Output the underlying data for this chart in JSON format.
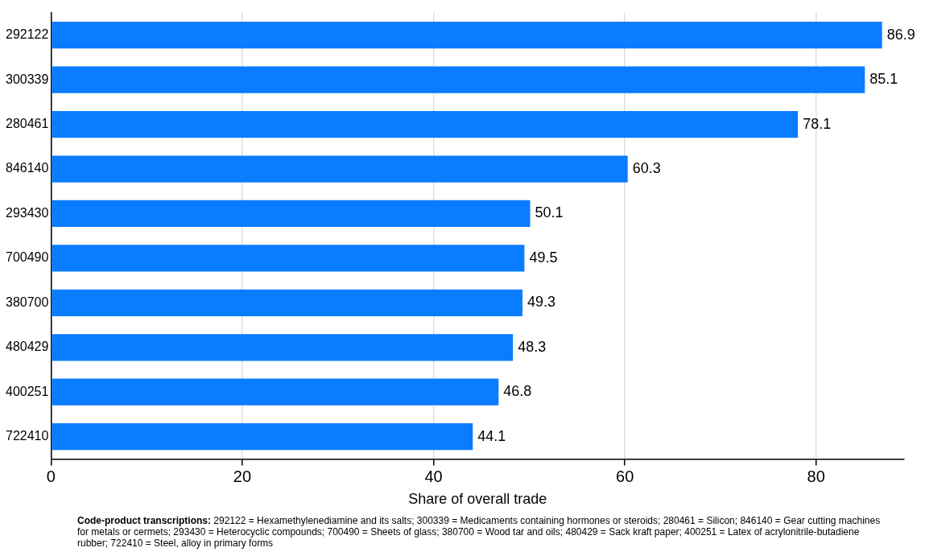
{
  "chart_data": {
    "type": "bar",
    "orientation": "horizontal",
    "xlabel": "Share of overall trade",
    "categories": [
      "292122",
      "300339",
      "280461",
      "846140",
      "293430",
      "700490",
      "380700",
      "480429",
      "400251",
      "722410"
    ],
    "values": [
      86.9,
      85.1,
      78.1,
      60.3,
      50.1,
      49.5,
      49.3,
      48.3,
      46.8,
      44.1
    ],
    "color": "#0a7cff",
    "data_labels": true,
    "xlim": [
      0,
      89.2
    ],
    "xticks": [
      0,
      20,
      40,
      60,
      80
    ],
    "grid": "x",
    "legend": false,
    "annotations": [
      "Code-product transcriptions:",
      "292122 = Hexamethylenediamine and its salts; 300339 = Medicaments containing hormones or steroids; 280461 = Silicon; 846140 = Gear cutting machines for metals or cermets; 293430 = Heterocyclic compounds; 700490 = Sheets of glass; 380700 = Wood tar and oils; 480429 = Sack kraft paper; 400251 = Latex of acrylonitrile-butadiene rubber; 722410 = Steel, alloy in primary forms"
    ]
  }
}
